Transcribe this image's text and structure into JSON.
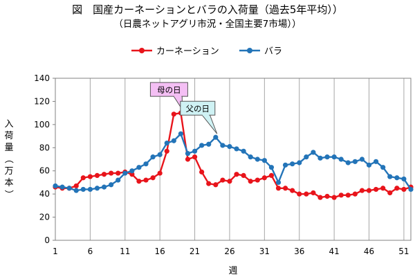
{
  "chart_data": {
    "type": "line",
    "title": "図　国産カーネーションとバラの入荷量（過去5年平均））",
    "subtitle": "（日農ネットアグリ市況・全国主要7市場））",
    "xlabel": "週",
    "ylabel": "入荷量（万本）",
    "ylim": [
      0,
      140
    ],
    "xlim": [
      1,
      52
    ],
    "yticks": [
      0,
      20,
      40,
      60,
      80,
      100,
      120,
      140
    ],
    "xticks": [
      1,
      6,
      11,
      16,
      21,
      26,
      31,
      36,
      41,
      46,
      51
    ],
    "grid": "vertical",
    "legend_position": "top",
    "x": [
      1,
      2,
      3,
      4,
      5,
      6,
      7,
      8,
      9,
      10,
      11,
      12,
      13,
      14,
      15,
      16,
      17,
      18,
      19,
      20,
      21,
      22,
      23,
      24,
      25,
      26,
      27,
      28,
      29,
      30,
      31,
      32,
      33,
      34,
      35,
      36,
      37,
      38,
      39,
      40,
      41,
      42,
      43,
      44,
      45,
      46,
      47,
      48,
      49,
      50,
      51,
      52
    ],
    "series": [
      {
        "name": "カーネーション",
        "color": "#e8141b",
        "values": [
          46,
          45,
          45,
          47,
          54,
          55,
          56,
          57,
          58,
          58,
          59,
          57,
          51,
          52,
          54,
          58,
          77,
          109,
          110,
          70,
          72,
          59,
          49,
          48,
          52,
          51,
          57,
          56,
          51,
          52,
          54,
          56,
          45,
          45,
          43,
          40,
          40,
          41,
          37,
          38,
          37,
          39,
          39,
          40,
          43,
          43,
          44,
          45,
          41,
          45,
          44,
          46
        ]
      },
      {
        "name": "バラ",
        "color": "#2374b8",
        "values": [
          47,
          46,
          45,
          43,
          44,
          44,
          45,
          46,
          48,
          52,
          58,
          60,
          63,
          66,
          72,
          74,
          84,
          86,
          92,
          75,
          77,
          82,
          83,
          89,
          82,
          81,
          79,
          77,
          72,
          70,
          69,
          63,
          50,
          65,
          66,
          67,
          72,
          76,
          71,
          72,
          72,
          70,
          67,
          68,
          70,
          65,
          68,
          63,
          55,
          54,
          53,
          44
        ]
      }
    ],
    "annotations": [
      {
        "text": "母の日",
        "x": 19,
        "y": 110,
        "fill": "#f4bff4"
      },
      {
        "text": "父の日",
        "x": 24,
        "y": 89,
        "fill": "#cff2f4"
      }
    ]
  }
}
